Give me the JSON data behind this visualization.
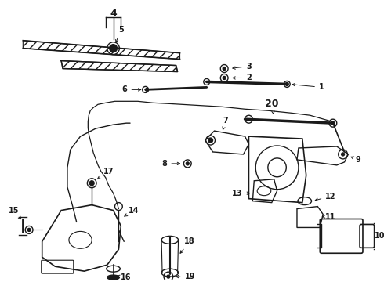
{
  "bg_color": "#ffffff",
  "line_color": "#1a1a1a",
  "fig_width": 4.9,
  "fig_height": 3.6,
  "dpi": 100,
  "label_fontsize": 7.0,
  "label_fontsize_large": 9.0,
  "label_fontweight": "bold"
}
